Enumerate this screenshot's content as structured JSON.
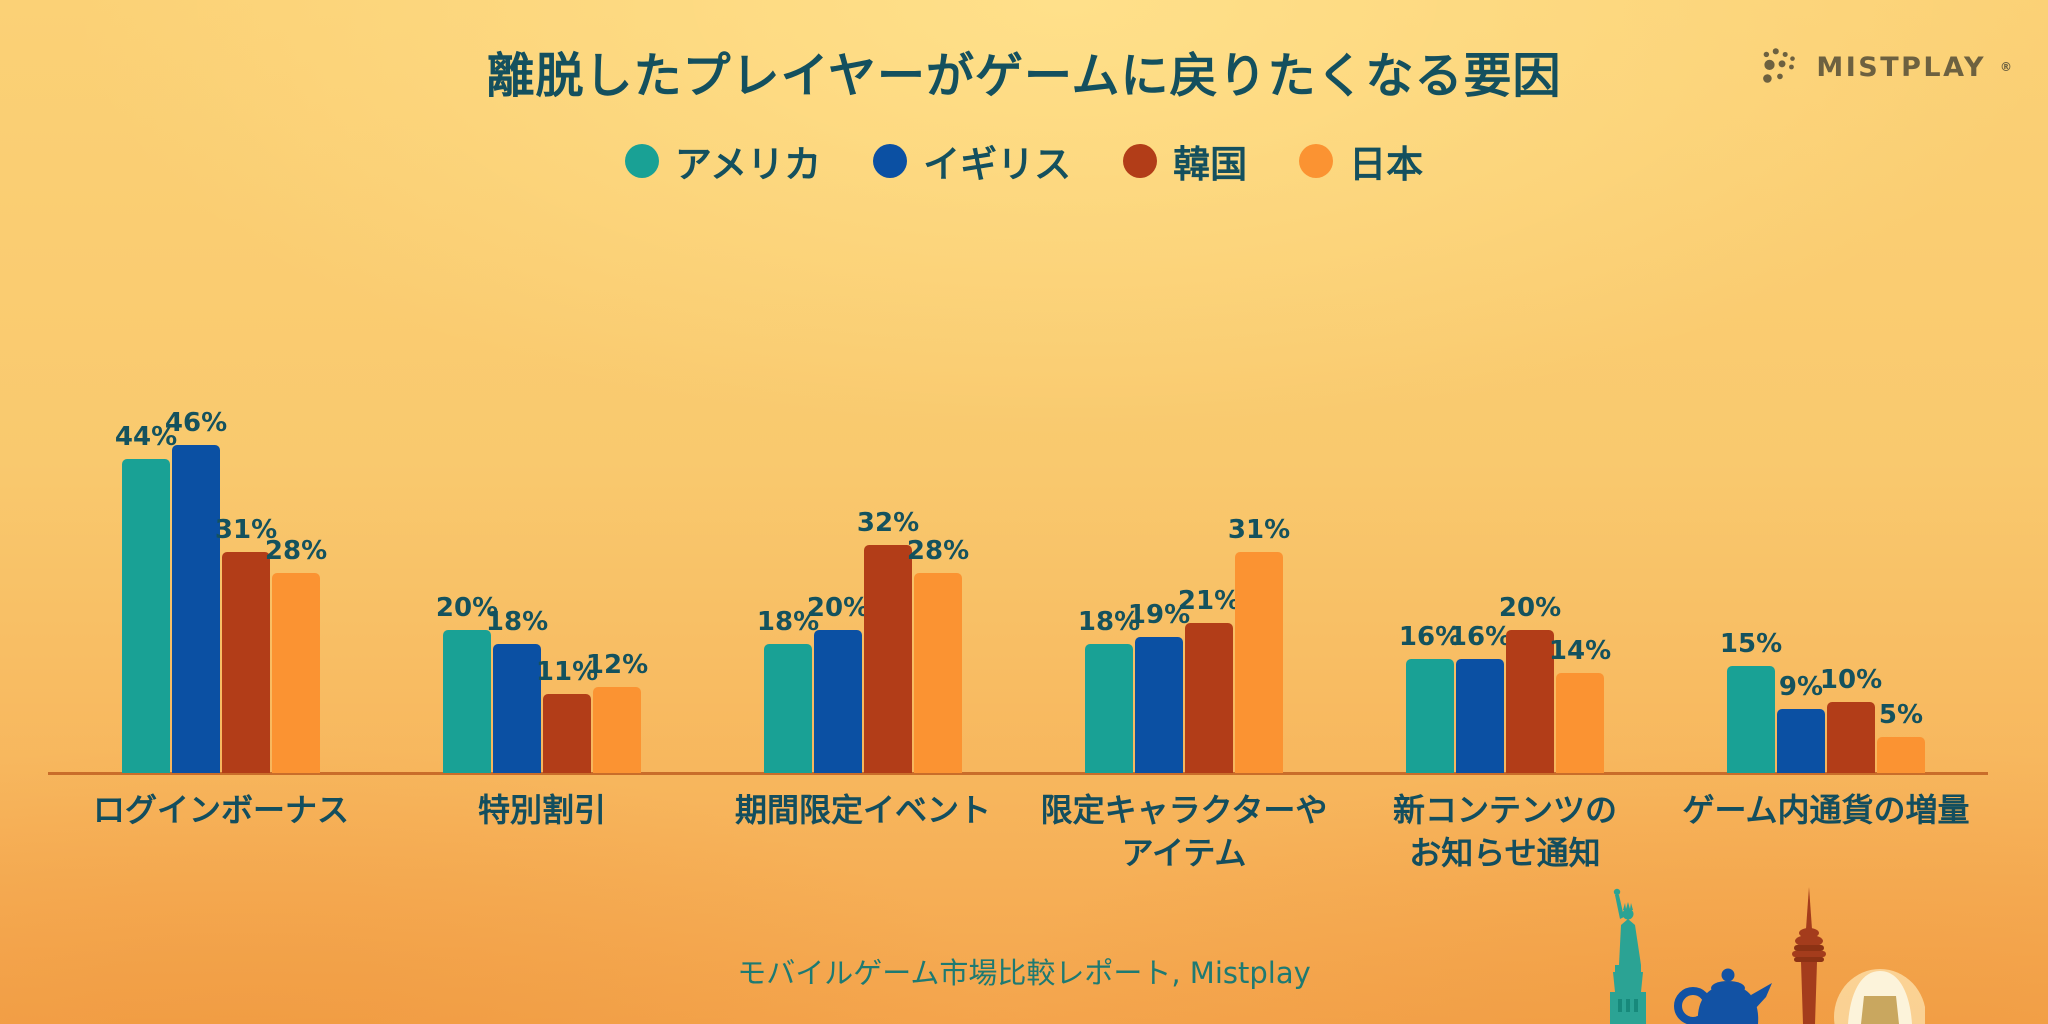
{
  "title": "離脱したプレイヤーがゲームに戻りたくなる要因",
  "logo": {
    "brand": "MISTPLAY",
    "registered_mark": "®"
  },
  "source_caption": "モバイルゲーム市場比較レポート, Mistplay",
  "colors": {
    "background_top": "#ffda7d",
    "background_bottom": "#f4a54d",
    "title_text": "#14505e",
    "value_label_text": "#14525e",
    "category_label_text": "#134e5e",
    "axis_line": "#c96d2a",
    "footer_text": "#1e7a72",
    "logo_text": "#6d6140"
  },
  "chart_data": {
    "type": "bar",
    "title": "離脱したプレイヤーがゲームに戻りたくなる要因",
    "categories": [
      [
        "ログインボーナス"
      ],
      [
        "特別割引"
      ],
      [
        "期間限定イベント"
      ],
      [
        "限定キャラクターや",
        "アイテム"
      ],
      [
        "新コンテンツの",
        "お知らせ通知"
      ],
      [
        "ゲーム内通貨の増量"
      ]
    ],
    "series": [
      {
        "name": "アメリカ",
        "color": "#19a195",
        "values": [
          44,
          20,
          18,
          18,
          16,
          15
        ]
      },
      {
        "name": "イギリス",
        "color": "#0b50a3",
        "values": [
          46,
          18,
          20,
          19,
          16,
          9
        ]
      },
      {
        "name": "韓国",
        "color": "#b23d18",
        "values": [
          31,
          11,
          32,
          21,
          20,
          10
        ]
      },
      {
        "name": "日本",
        "color": "#fb9332",
        "values": [
          28,
          12,
          28,
          31,
          14,
          5
        ]
      }
    ],
    "value_suffix": "%",
    "ylim": [
      0,
      50
    ],
    "legend_position": "top-center",
    "grid": false,
    "value_labels": true,
    "xlabel": "",
    "ylabel": ""
  },
  "illustration_icons": [
    "statue-of-liberty",
    "teapot",
    "n-seoul-tower",
    "onigiri"
  ]
}
